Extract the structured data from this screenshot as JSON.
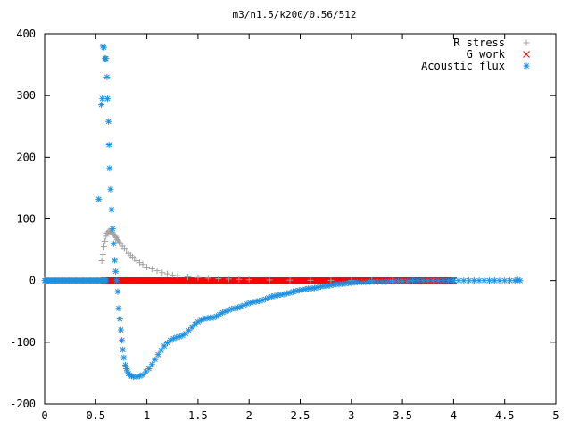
{
  "chart_data": {
    "type": "scatter",
    "title": "m3/n1.5/k200/0.56/512",
    "xlabel": "",
    "ylabel": "",
    "xlim": [
      0,
      5
    ],
    "ylim": [
      -200,
      400
    ],
    "x_ticks": [
      0,
      0.5,
      1,
      1.5,
      2,
      2.5,
      3,
      3.5,
      4,
      4.5,
      5
    ],
    "y_ticks": [
      -200,
      -100,
      0,
      100,
      200,
      300,
      400
    ],
    "x_tick_labels": [
      "0",
      "0.5",
      "1",
      "1.5",
      "2",
      "2.5",
      "3",
      "3.5",
      "4",
      "4.5",
      "5"
    ],
    "y_tick_labels": [
      "-200",
      "-100",
      "0",
      "100",
      "200",
      "300",
      "400"
    ],
    "grid": false,
    "legend_position": "top-right",
    "series": [
      {
        "name": "R stress",
        "marker": "plus",
        "color": "#a0a0a0",
        "points": [
          [
            0.56,
            32
          ],
          [
            0.57,
            42
          ],
          [
            0.58,
            55
          ],
          [
            0.59,
            64
          ],
          [
            0.6,
            72
          ],
          [
            0.61,
            77
          ],
          [
            0.62,
            79
          ],
          [
            0.63,
            80
          ],
          [
            0.64,
            80
          ],
          [
            0.65,
            79
          ],
          [
            0.66,
            78
          ],
          [
            0.67,
            76
          ],
          [
            0.68,
            74
          ],
          [
            0.69,
            72
          ],
          [
            0.7,
            70
          ],
          [
            0.71,
            67
          ],
          [
            0.72,
            65
          ],
          [
            0.73,
            62
          ],
          [
            0.74,
            60
          ],
          [
            0.76,
            56
          ],
          [
            0.78,
            52
          ],
          [
            0.8,
            48
          ],
          [
            0.82,
            44
          ],
          [
            0.84,
            41
          ],
          [
            0.86,
            38
          ],
          [
            0.88,
            35
          ],
          [
            0.9,
            32
          ],
          [
            0.93,
            29
          ],
          [
            0.96,
            26
          ],
          [
            1.0,
            22
          ],
          [
            1.05,
            19
          ],
          [
            1.1,
            16
          ],
          [
            1.15,
            13
          ],
          [
            1.2,
            11
          ],
          [
            1.25,
            9
          ],
          [
            1.3,
            8
          ],
          [
            1.4,
            6
          ],
          [
            1.5,
            5
          ],
          [
            1.6,
            4
          ],
          [
            1.7,
            3
          ],
          [
            1.8,
            2.5
          ],
          [
            1.9,
            2
          ],
          [
            2.0,
            1.5
          ],
          [
            2.2,
            1
          ],
          [
            2.4,
            0.7
          ],
          [
            2.6,
            0.5
          ],
          [
            2.8,
            0.3
          ],
          [
            3.0,
            0.2
          ],
          [
            3.2,
            0.1
          ],
          [
            3.4,
            0.1
          ],
          [
            3.6,
            0
          ],
          [
            3.8,
            0
          ],
          [
            4.0,
            0
          ],
          [
            4.2,
            0
          ],
          [
            4.4,
            0
          ],
          [
            4.6,
            0
          ]
        ]
      },
      {
        "name": "G work",
        "marker": "cross",
        "color": "#ff0000",
        "x_start": 0.58,
        "x_end": 4.0,
        "x_step": 0.01,
        "y_constant": 0
      },
      {
        "name": "Acoustic flux",
        "marker": "star",
        "color": "#1e90e0",
        "baseline": {
          "x_start": 0.0,
          "x_end": 0.6,
          "x_step": 0.01,
          "y": 0
        },
        "points": [
          [
            0.53,
            132
          ],
          [
            0.555,
            285
          ],
          [
            0.565,
            295
          ],
          [
            0.57,
            380
          ],
          [
            0.58,
            378
          ],
          [
            0.59,
            360
          ],
          [
            0.6,
            360
          ],
          [
            0.61,
            330
          ],
          [
            0.615,
            295
          ],
          [
            0.625,
            258
          ],
          [
            0.63,
            220
          ],
          [
            0.635,
            182
          ],
          [
            0.645,
            148
          ],
          [
            0.655,
            115
          ],
          [
            0.665,
            84
          ],
          [
            0.675,
            60
          ],
          [
            0.685,
            33
          ],
          [
            0.695,
            15
          ],
          [
            0.705,
            0
          ],
          [
            0.715,
            -18
          ],
          [
            0.725,
            -45
          ],
          [
            0.735,
            -62
          ],
          [
            0.745,
            -80
          ],
          [
            0.755,
            -97
          ],
          [
            0.765,
            -112
          ],
          [
            0.775,
            -125
          ],
          [
            0.79,
            -137
          ],
          [
            0.8,
            -143
          ],
          [
            0.81,
            -148
          ],
          [
            0.82,
            -151
          ],
          [
            0.835,
            -154
          ],
          [
            0.85,
            -155
          ],
          [
            0.87,
            -156
          ],
          [
            0.9,
            -156
          ],
          [
            0.93,
            -155
          ],
          [
            0.96,
            -153
          ],
          [
            0.99,
            -148
          ],
          [
            1.02,
            -143
          ],
          [
            1.05,
            -136
          ],
          [
            1.08,
            -128
          ],
          [
            1.11,
            -120
          ],
          [
            1.14,
            -113
          ],
          [
            1.17,
            -106
          ],
          [
            1.2,
            -101
          ],
          [
            1.23,
            -97
          ],
          [
            1.26,
            -94
          ],
          [
            1.29,
            -92
          ],
          [
            1.32,
            -91
          ],
          [
            1.35,
            -89
          ],
          [
            1.38,
            -86
          ],
          [
            1.41,
            -81
          ],
          [
            1.44,
            -76
          ],
          [
            1.47,
            -71
          ],
          [
            1.5,
            -67
          ],
          [
            1.53,
            -64
          ],
          [
            1.56,
            -62
          ],
          [
            1.59,
            -61
          ],
          [
            1.62,
            -60
          ],
          [
            1.65,
            -60
          ],
          [
            1.68,
            -58
          ],
          [
            1.71,
            -55
          ],
          [
            1.74,
            -52
          ],
          [
            1.77,
            -50
          ],
          [
            1.8,
            -48
          ],
          [
            1.83,
            -46
          ],
          [
            1.86,
            -45
          ],
          [
            1.89,
            -44
          ],
          [
            1.92,
            -42
          ],
          [
            1.95,
            -40
          ],
          [
            1.98,
            -38
          ],
          [
            2.01,
            -36
          ],
          [
            2.04,
            -35
          ],
          [
            2.07,
            -34
          ],
          [
            2.1,
            -33
          ],
          [
            2.13,
            -32
          ],
          [
            2.16,
            -30
          ],
          [
            2.19,
            -28
          ],
          [
            2.22,
            -26
          ],
          [
            2.25,
            -25
          ],
          [
            2.28,
            -24
          ],
          [
            2.31,
            -23
          ],
          [
            2.34,
            -22
          ],
          [
            2.37,
            -21
          ],
          [
            2.4,
            -20
          ],
          [
            2.43,
            -18
          ],
          [
            2.46,
            -17
          ],
          [
            2.49,
            -16
          ],
          [
            2.52,
            -15
          ],
          [
            2.55,
            -14
          ],
          [
            2.58,
            -13
          ],
          [
            2.61,
            -13
          ],
          [
            2.64,
            -12
          ],
          [
            2.67,
            -11
          ],
          [
            2.7,
            -10
          ],
          [
            2.73,
            -9
          ],
          [
            2.76,
            -9
          ],
          [
            2.79,
            -8
          ],
          [
            2.82,
            -7
          ],
          [
            2.85,
            -6
          ],
          [
            2.88,
            -6
          ],
          [
            2.91,
            -5
          ],
          [
            2.94,
            -5
          ],
          [
            2.97,
            -4
          ],
          [
            3.0,
            -4
          ],
          [
            3.03,
            -3
          ],
          [
            3.06,
            -3
          ],
          [
            3.1,
            -3
          ],
          [
            3.14,
            -3
          ],
          [
            3.18,
            -2
          ],
          [
            3.22,
            -2
          ],
          [
            3.26,
            -2
          ],
          [
            3.3,
            -2
          ],
          [
            3.34,
            -2
          ],
          [
            3.38,
            -1
          ],
          [
            3.42,
            -1
          ],
          [
            3.46,
            -1
          ],
          [
            3.5,
            -1
          ],
          [
            3.55,
            -1
          ],
          [
            3.6,
            0
          ],
          [
            3.65,
            0
          ],
          [
            3.7,
            0
          ],
          [
            3.75,
            0
          ],
          [
            3.8,
            0
          ],
          [
            3.85,
            0
          ],
          [
            3.9,
            0
          ],
          [
            3.95,
            0
          ],
          [
            4.0,
            0
          ],
          [
            4.05,
            0
          ],
          [
            4.1,
            0
          ],
          [
            4.15,
            0
          ],
          [
            4.2,
            0
          ],
          [
            4.25,
            0
          ],
          [
            4.3,
            0
          ],
          [
            4.35,
            0
          ],
          [
            4.4,
            0
          ],
          [
            4.45,
            0
          ],
          [
            4.5,
            0
          ],
          [
            4.55,
            0
          ],
          [
            4.6,
            0
          ],
          [
            4.63,
            1
          ],
          [
            4.65,
            0
          ]
        ]
      }
    ]
  }
}
